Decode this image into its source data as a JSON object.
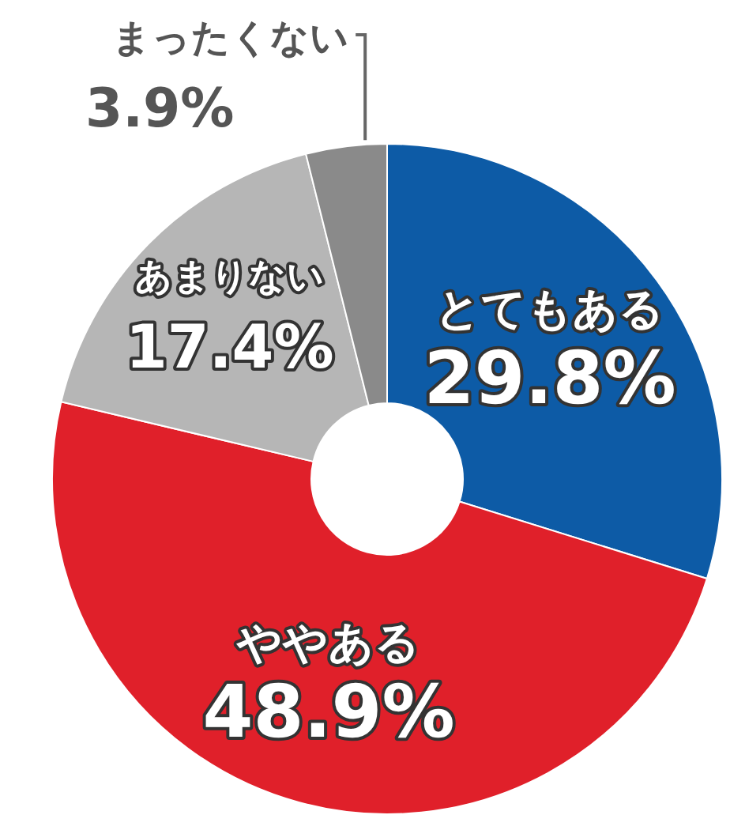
{
  "chart_data": {
    "type": "donut",
    "categories": [
      "とてもある",
      "ややある",
      "あまりない",
      "まったくない"
    ],
    "values": [
      29.8,
      48.9,
      17.4,
      3.9
    ],
    "value_labels": [
      "29.8%",
      "48.9%",
      "17.4%",
      "3.9%"
    ],
    "colors": [
      "#0d5ba6",
      "#e0202a",
      "#b6b6b6",
      "#8a8a8a"
    ],
    "legend": false
  }
}
